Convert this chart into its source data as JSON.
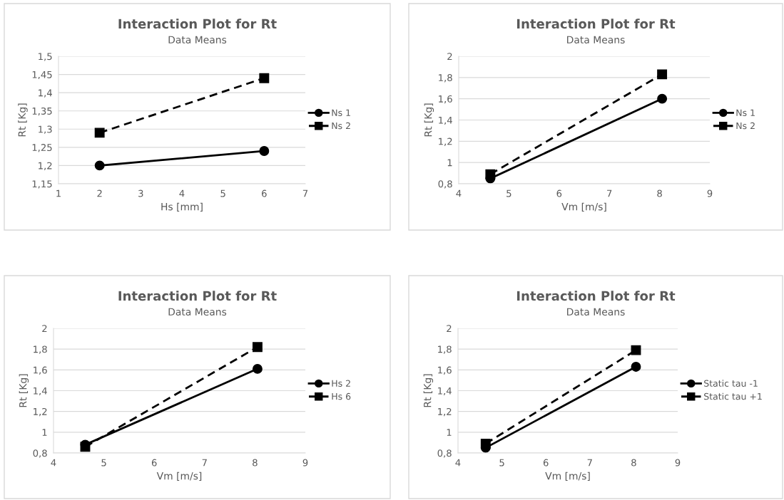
{
  "chart_data": [
    {
      "type": "line",
      "title": "Interaction Plot for Rt",
      "subtitle": "Data Means",
      "xlabel": "Hs [mm]",
      "ylabel": "Rt [Kg]",
      "xlim": [
        1,
        7
      ],
      "xticks": [
        1,
        2,
        3,
        4,
        5,
        6,
        7
      ],
      "ylim": [
        1.15,
        1.5
      ],
      "yticks": [
        {
          "value": 1.15,
          "label": "1,15"
        },
        {
          "value": 1.2,
          "label": "1,2"
        },
        {
          "value": 1.25,
          "label": "1,25"
        },
        {
          "value": 1.3,
          "label": "1,3"
        },
        {
          "value": 1.35,
          "label": "1,35"
        },
        {
          "value": 1.4,
          "label": "1,4"
        },
        {
          "value": 1.45,
          "label": "1,45"
        },
        {
          "value": 1.5,
          "label": "1,5"
        }
      ],
      "grid": "y",
      "legend": "right",
      "series": [
        {
          "name": "Ns 1",
          "color": "#000000",
          "x": [
            2,
            6
          ],
          "values": [
            1.2,
            1.24
          ],
          "marker": "circle",
          "line_style": "solid"
        },
        {
          "name": "Ns 2",
          "color": "#000000",
          "x": [
            2,
            6
          ],
          "values": [
            1.29,
            1.44
          ],
          "marker": "square",
          "line_style": "dashed"
        }
      ]
    },
    {
      "type": "line",
      "title": "Interaction Plot for Rt",
      "subtitle": "Data Means",
      "xlabel": "Vm [m/s]",
      "ylabel": "Rt [Kg]",
      "xlim": [
        4,
        9
      ],
      "xticks": [
        4,
        5,
        6,
        7,
        8,
        9
      ],
      "ylim": [
        0.8,
        2
      ],
      "yticks": [
        {
          "value": 0.8,
          "label": "0,8"
        },
        1,
        {
          "value": 1.2,
          "label": "1,2"
        },
        {
          "value": 1.4,
          "label": "1,4"
        },
        {
          "value": 1.6,
          "label": "1,6"
        },
        {
          "value": 1.8,
          "label": "1,8"
        },
        2
      ],
      "grid": "y",
      "legend": "right",
      "series": [
        {
          "name": "Ns 1",
          "color": "#000000",
          "x": [
            4.63,
            8.05
          ],
          "values": [
            0.85,
            1.6
          ],
          "marker": "circle",
          "line_style": "solid"
        },
        {
          "name": "Ns 2",
          "color": "#000000",
          "x": [
            4.63,
            8.05
          ],
          "values": [
            0.89,
            1.83
          ],
          "marker": "square",
          "line_style": "dashed"
        }
      ]
    },
    {
      "type": "line",
      "title": "Interaction Plot for Rt",
      "subtitle": "Data Means",
      "xlabel": "Vm [m/s]",
      "ylabel": "Rt [Kg]",
      "xlim": [
        4,
        9
      ],
      "xticks": [
        4,
        5,
        6,
        7,
        8,
        9
      ],
      "ylim": [
        0.8,
        2
      ],
      "yticks": [
        {
          "value": 0.8,
          "label": "0,8"
        },
        1,
        {
          "value": 1.2,
          "label": "1,2"
        },
        {
          "value": 1.4,
          "label": "1,4"
        },
        {
          "value": 1.6,
          "label": "1,6"
        },
        {
          "value": 1.8,
          "label": "1,8"
        },
        2
      ],
      "grid": "y",
      "legend": "right",
      "series": [
        {
          "name": "Hs 2",
          "color": "#000000",
          "x": [
            4.63,
            8.05
          ],
          "values": [
            0.88,
            1.61
          ],
          "marker": "circle",
          "line_style": "solid"
        },
        {
          "name": "Hs 6",
          "color": "#000000",
          "x": [
            4.63,
            8.05
          ],
          "values": [
            0.86,
            1.82
          ],
          "marker": "square",
          "line_style": "dashed"
        }
      ]
    },
    {
      "type": "line",
      "title": "Interaction Plot for Rt",
      "subtitle": "Data Means",
      "xlabel": "Vm [m/s]",
      "ylabel": "Rt [Kg]",
      "xlim": [
        4,
        9
      ],
      "xticks": [
        4,
        5,
        6,
        7,
        8,
        9
      ],
      "ylim": [
        0.8,
        2
      ],
      "yticks": [
        {
          "value": 0.8,
          "label": "0,8"
        },
        1,
        {
          "value": 1.2,
          "label": "1,2"
        },
        {
          "value": 1.4,
          "label": "1,4"
        },
        {
          "value": 1.6,
          "label": "1,6"
        },
        {
          "value": 1.8,
          "label": "1,8"
        },
        2
      ],
      "grid": "y",
      "legend": "right",
      "series": [
        {
          "name": "Static tau -1",
          "color": "#000000",
          "x": [
            4.63,
            8.05
          ],
          "values": [
            0.85,
            1.63
          ],
          "marker": "circle",
          "line_style": "solid"
        },
        {
          "name": "Static tau +1",
          "color": "#000000",
          "x": [
            4.63,
            8.05
          ],
          "values": [
            0.89,
            1.79
          ],
          "marker": "square",
          "line_style": "dashed"
        }
      ]
    }
  ]
}
